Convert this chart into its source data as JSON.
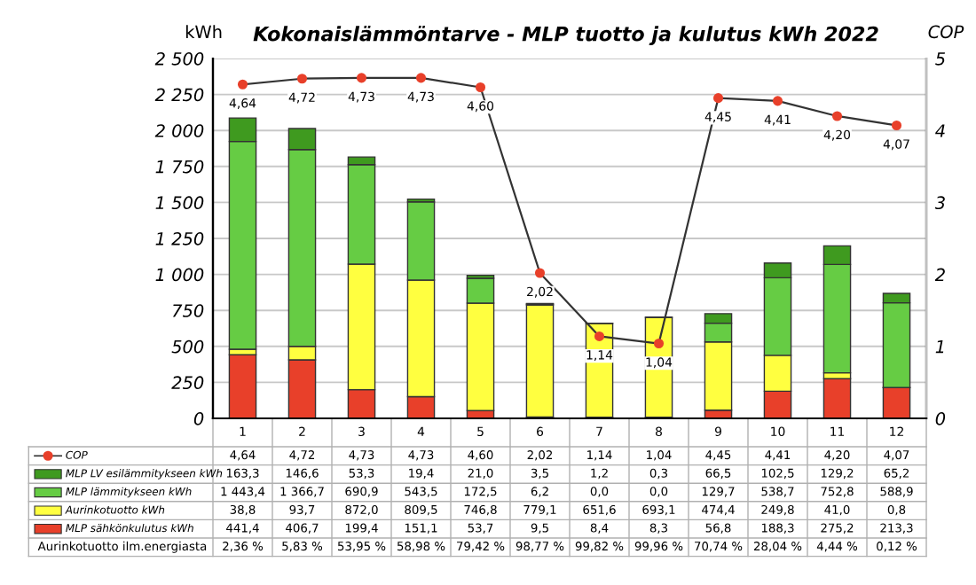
{
  "chart_data": {
    "type": "bar",
    "stacked": true,
    "title": "Kokonaislämmöntarve - MLP tuotto ja kulutus kWh 2022",
    "ylabel": "kWh",
    "y2label": "COP",
    "categories": [
      "1",
      "2",
      "3",
      "4",
      "5",
      "6",
      "7",
      "8",
      "9",
      "10",
      "11",
      "12"
    ],
    "series": [
      {
        "name": "MLP sähkönkulutus kWh",
        "color": "#e8402a",
        "values": [
          441.4,
          406.7,
          199.4,
          151.1,
          53.7,
          9.5,
          8.4,
          8.3,
          56.8,
          188.3,
          275.2,
          213.3
        ],
        "value_labels": [
          "441,4",
          "406,7",
          "199,4",
          "151,1",
          "53,7",
          "9,5",
          "8,4",
          "8,3",
          "56,8",
          "188,3",
          "275,2",
          "213,3"
        ]
      },
      {
        "name": "Aurinkotuotto kWh",
        "color": "#ffff40",
        "values": [
          38.8,
          93.7,
          872.0,
          809.5,
          746.8,
          779.1,
          651.6,
          693.1,
          474.4,
          249.8,
          41.0,
          0.8
        ],
        "value_labels": [
          "38,8",
          "93,7",
          "872,0",
          "809,5",
          "746,8",
          "779,1",
          "651,6",
          "693,1",
          "474,4",
          "249,8",
          "41,0",
          "0,8"
        ]
      },
      {
        "name": "MLP lämmitykseen kWh",
        "color": "#66cc44",
        "values": [
          1443.4,
          1366.7,
          690.9,
          543.5,
          172.5,
          6.2,
          0.0,
          0.0,
          129.7,
          538.7,
          752.8,
          588.9
        ],
        "value_labels": [
          "1 443,4",
          "1 366,7",
          "690,9",
          "543,5",
          "172,5",
          "6,2",
          "0,0",
          "0,0",
          "129,7",
          "538,7",
          "752,8",
          "588,9"
        ]
      },
      {
        "name": "MLP LV esilämmitykseen kWh",
        "color": "#3f9a1f",
        "values": [
          163.3,
          146.6,
          53.3,
          19.4,
          21.0,
          3.5,
          1.2,
          0.3,
          66.5,
          102.5,
          129.2,
          65.2
        ],
        "value_labels": [
          "163,3",
          "146,6",
          "53,3",
          "19,4",
          "21,0",
          "3,5",
          "1,2",
          "0,3",
          "66,5",
          "102,5",
          "129,2",
          "65,2"
        ]
      },
      {
        "name": "COP",
        "type": "line",
        "axis": "y2",
        "color": "#e8402a",
        "marker": "circle",
        "values": [
          4.64,
          4.72,
          4.73,
          4.73,
          4.6,
          2.02,
          1.14,
          1.04,
          4.45,
          4.41,
          4.2,
          4.07
        ],
        "value_labels": [
          "4,64",
          "4,72",
          "4,73",
          "4,73",
          "4,60",
          "2,02",
          "1,14",
          "1,04",
          "4,45",
          "4,41",
          "4,20",
          "4,07"
        ]
      }
    ],
    "ylim": [
      0,
      2500
    ],
    "yticks": [
      {
        "value": 0,
        "label": "0"
      },
      {
        "value": 250,
        "label": "250"
      },
      {
        "value": 500,
        "label": "500"
      },
      {
        "value": 750,
        "label": "750"
      },
      {
        "value": 1000,
        "label": "1 000"
      },
      {
        "value": 1250,
        "label": "1 250"
      },
      {
        "value": 1500,
        "label": "1 500"
      },
      {
        "value": 1750,
        "label": "1 750"
      },
      {
        "value": 2000,
        "label": "2 000"
      },
      {
        "value": 2250,
        "label": "2 250"
      },
      {
        "value": 2500,
        "label": "2 500"
      }
    ],
    "y2lim": [
      0,
      5
    ],
    "y2ticks": [
      0,
      1,
      2,
      3,
      4,
      5
    ],
    "grid": "y",
    "legend": "bottom",
    "data_labels": true,
    "annotations": [
      "Aurinkotuotto ilm.energiasta",
      "2,36 %",
      "5,83 %",
      "53,95 %",
      "58,98 %",
      "79,42 %",
      "98,77 %",
      "99,82 %",
      "99,96 %",
      "70,74 %",
      "28,04 %",
      "4,44 %",
      "0,12 %"
    ]
  }
}
